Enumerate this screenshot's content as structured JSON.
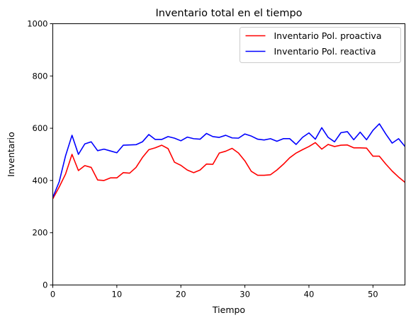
{
  "chart_data": {
    "type": "line",
    "title": "Inventario total en el tiempo",
    "xlabel": "Tiempo",
    "ylabel": "Inventario",
    "xlim": [
      0,
      55
    ],
    "ylim": [
      0,
      1000
    ],
    "xticks": [
      0,
      10,
      20,
      30,
      40,
      50
    ],
    "yticks": [
      0,
      200,
      400,
      600,
      800,
      1000
    ],
    "grid": false,
    "legend_position": "top-right",
    "x": [
      0,
      1,
      2,
      3,
      4,
      5,
      6,
      7,
      8,
      9,
      10,
      11,
      12,
      13,
      14,
      15,
      16,
      17,
      18,
      19,
      20,
      21,
      22,
      23,
      24,
      25,
      26,
      27,
      28,
      29,
      30,
      31,
      32,
      33,
      34,
      35,
      36,
      37,
      38,
      39,
      40,
      41,
      42,
      43,
      44,
      45,
      46,
      47,
      48,
      49,
      50,
      51,
      52,
      53,
      54,
      55
    ],
    "series": [
      {
        "name": "Inventario Pol. proactiva",
        "color": "#ff0000",
        "values": [
          330,
          375,
          425,
          500,
          438,
          457,
          450,
          402,
          400,
          410,
          410,
          430,
          428,
          450,
          488,
          518,
          525,
          535,
          522,
          470,
          458,
          440,
          430,
          440,
          463,
          462,
          505,
          512,
          523,
          505,
          475,
          435,
          420,
          420,
          422,
          440,
          462,
          487,
          505,
          518,
          530,
          545,
          520,
          538,
          530,
          535,
          536,
          525,
          525,
          524,
          493,
          493,
          463,
          436,
          413,
          393
        ]
      },
      {
        "name": "Inventario Pol. reactiva",
        "color": "#0000ff",
        "values": [
          335,
          395,
          495,
          573,
          500,
          540,
          548,
          514,
          520,
          513,
          506,
          535,
          536,
          537,
          548,
          576,
          557,
          557,
          568,
          562,
          552,
          566,
          560,
          558,
          580,
          568,
          565,
          573,
          563,
          562,
          578,
          570,
          558,
          555,
          560,
          550,
          560,
          560,
          538,
          565,
          582,
          558,
          602,
          565,
          548,
          583,
          587,
          556,
          585,
          556,
          592,
          617,
          578,
          543,
          560,
          530
        ]
      }
    ]
  }
}
